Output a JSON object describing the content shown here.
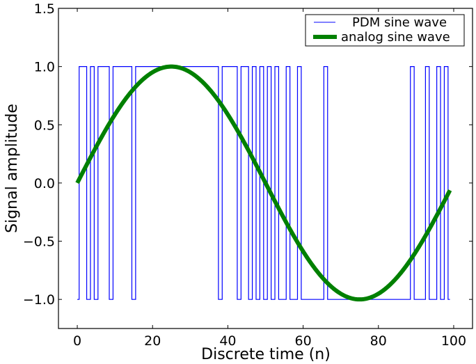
{
  "chart_data": {
    "type": "line",
    "title": "",
    "xlabel": "Discrete time (n)",
    "ylabel": "Signal amplitude",
    "xlim": [
      -5,
      105
    ],
    "ylim": [
      -1.25,
      1.5
    ],
    "xticks": [
      0,
      20,
      40,
      60,
      80,
      100
    ],
    "xtick_labels": [
      "0",
      "20",
      "40",
      "60",
      "80",
      "100"
    ],
    "yticks": [
      -1.0,
      -0.5,
      0.0,
      0.5,
      1.0,
      1.5
    ],
    "ytick_labels": [
      "−1.0",
      "−0.5",
      "0.0",
      "0.5",
      "1.0",
      "1.5"
    ],
    "grid": false,
    "legend_position": "top-right",
    "series": [
      {
        "name": "PDM sine wave",
        "style": "steps-mid",
        "color": "#0000ff",
        "x_start": 0,
        "values": [
          -1,
          1,
          1,
          -1,
          1,
          -1,
          1,
          1,
          1,
          -1,
          1,
          1,
          1,
          1,
          1,
          -1,
          1,
          1,
          1,
          1,
          1,
          1,
          1,
          1,
          1,
          1,
          1,
          1,
          1,
          1,
          1,
          1,
          1,
          1,
          1,
          1,
          1,
          1,
          -1,
          1,
          1,
          1,
          1,
          -1,
          1,
          1,
          -1,
          1,
          -1,
          1,
          -1,
          1,
          -1,
          1,
          -1,
          -1,
          1,
          -1,
          -1,
          1,
          -1,
          -1,
          -1,
          -1,
          -1,
          -1,
          1,
          -1,
          -1,
          -1,
          -1,
          -1,
          -1,
          -1,
          -1,
          -1,
          -1,
          -1,
          -1,
          -1,
          -1,
          -1,
          -1,
          -1,
          -1,
          -1,
          -1,
          -1,
          -1,
          1,
          -1,
          -1,
          -1,
          1,
          -1,
          -1,
          1,
          -1,
          1,
          -1
        ]
      },
      {
        "name": "analog sine wave",
        "style": "line",
        "color": "#008000",
        "function": "sin(2*pi*n/100)",
        "amplitude": 1,
        "period": 100,
        "n_range": [
          0,
          99
        ]
      }
    ]
  }
}
